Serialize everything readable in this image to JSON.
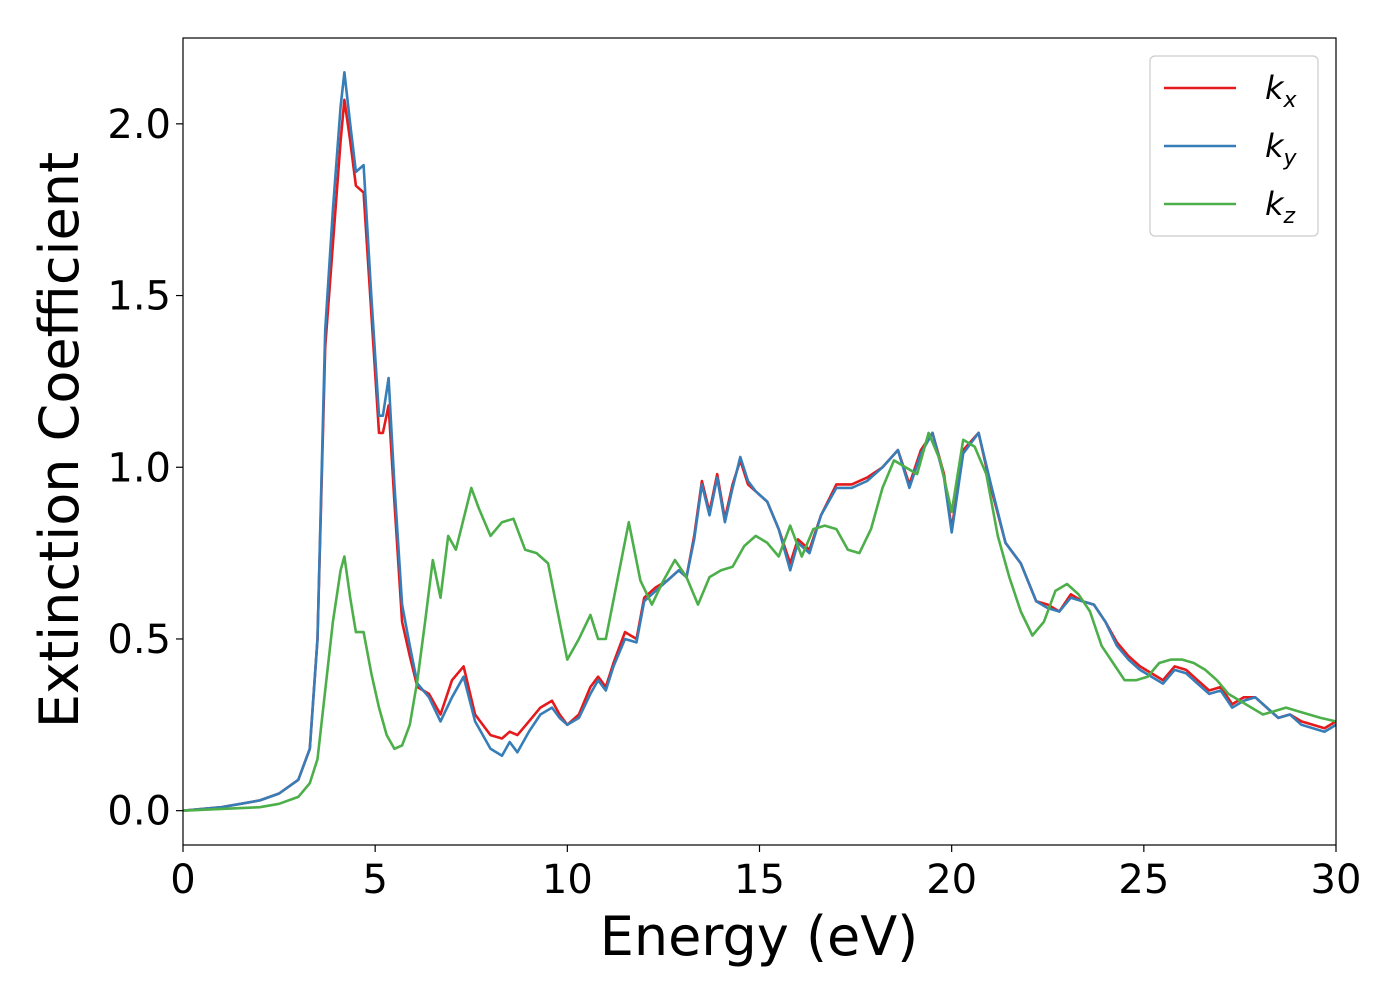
{
  "chart_data": {
    "type": "line",
    "xlabel": "Energy (eV)",
    "ylabel": "Extinction Coefficient",
    "xlim": [
      0,
      30
    ],
    "ylim": [
      -0.1,
      2.25
    ],
    "xticks": [
      0,
      5,
      10,
      15,
      20,
      25,
      30
    ],
    "xtick_labels": [
      "0",
      "5",
      "10",
      "15",
      "20",
      "25",
      "30"
    ],
    "yticks": [
      0.0,
      0.5,
      1.0,
      1.5,
      2.0
    ],
    "ytick_labels": [
      "0.0",
      "0.5",
      "1.0",
      "1.5",
      "2.0"
    ],
    "grid": false,
    "legend_position": "top-right",
    "series": [
      {
        "name": "k_x",
        "label_main": "k",
        "label_sub": "x",
        "color": "#e41a1c",
        "x": [
          0,
          1,
          2,
          2.5,
          3,
          3.3,
          3.5,
          3.7,
          3.9,
          4.1,
          4.2,
          4.35,
          4.5,
          4.7,
          4.9,
          5.1,
          5.2,
          5.35,
          5.5,
          5.7,
          5.9,
          6.1,
          6.4,
          6.7,
          7,
          7.3,
          7.6,
          8,
          8.3,
          8.5,
          8.7,
          9,
          9.3,
          9.6,
          9.8,
          10,
          10.3,
          10.6,
          10.8,
          11,
          11.2,
          11.5,
          11.8,
          12,
          12.3,
          12.6,
          12.9,
          13.1,
          13.3,
          13.5,
          13.7,
          13.9,
          14.1,
          14.3,
          14.5,
          14.7,
          14.9,
          15.2,
          15.5,
          15.8,
          16,
          16.3,
          16.6,
          17,
          17.4,
          17.8,
          18.2,
          18.6,
          18.9,
          19.2,
          19.5,
          19.8,
          20,
          20.3,
          20.7,
          21,
          21.4,
          21.8,
          22.2,
          22.5,
          22.8,
          23.1,
          23.4,
          23.7,
          24,
          24.3,
          24.6,
          24.9,
          25.2,
          25.5,
          25.8,
          26.1,
          26.4,
          26.7,
          27,
          27.3,
          27.6,
          27.9,
          28.2,
          28.5,
          28.8,
          29.1,
          29.4,
          29.7,
          30
        ],
        "values": [
          0.0,
          0.01,
          0.03,
          0.05,
          0.09,
          0.18,
          0.5,
          1.35,
          1.65,
          1.95,
          2.07,
          1.95,
          1.82,
          1.8,
          1.45,
          1.1,
          1.1,
          1.18,
          0.9,
          0.55,
          0.45,
          0.36,
          0.34,
          0.28,
          0.38,
          0.42,
          0.28,
          0.22,
          0.21,
          0.23,
          0.22,
          0.26,
          0.3,
          0.32,
          0.28,
          0.25,
          0.28,
          0.36,
          0.39,
          0.36,
          0.43,
          0.52,
          0.5,
          0.62,
          0.65,
          0.67,
          0.7,
          0.68,
          0.8,
          0.96,
          0.87,
          0.98,
          0.85,
          0.95,
          1.02,
          0.95,
          0.93,
          0.9,
          0.82,
          0.72,
          0.79,
          0.76,
          0.86,
          0.95,
          0.95,
          0.97,
          1.0,
          1.05,
          0.95,
          1.05,
          1.1,
          0.98,
          0.82,
          1.05,
          1.1,
          0.95,
          0.78,
          0.72,
          0.61,
          0.6,
          0.58,
          0.63,
          0.61,
          0.6,
          0.55,
          0.49,
          0.45,
          0.42,
          0.4,
          0.38,
          0.42,
          0.41,
          0.38,
          0.35,
          0.36,
          0.31,
          0.33,
          0.33,
          0.3,
          0.27,
          0.28,
          0.26,
          0.25,
          0.24,
          0.26
        ]
      },
      {
        "name": "k_y",
        "label_main": "k",
        "label_sub": "y",
        "color": "#377eb8",
        "x": [
          0,
          1,
          2,
          2.5,
          3,
          3.3,
          3.5,
          3.7,
          3.9,
          4.1,
          4.2,
          4.35,
          4.5,
          4.7,
          4.9,
          5.1,
          5.2,
          5.35,
          5.5,
          5.7,
          5.9,
          6.1,
          6.4,
          6.7,
          7,
          7.3,
          7.6,
          8,
          8.3,
          8.5,
          8.7,
          9,
          9.3,
          9.6,
          9.8,
          10,
          10.3,
          10.6,
          10.8,
          11,
          11.2,
          11.5,
          11.8,
          12,
          12.3,
          12.6,
          12.9,
          13.1,
          13.3,
          13.5,
          13.7,
          13.9,
          14.1,
          14.3,
          14.5,
          14.7,
          14.9,
          15.2,
          15.5,
          15.8,
          16,
          16.3,
          16.6,
          17,
          17.4,
          17.8,
          18.2,
          18.6,
          18.9,
          19.2,
          19.5,
          19.8,
          20,
          20.3,
          20.7,
          21,
          21.4,
          21.8,
          22.2,
          22.5,
          22.8,
          23.1,
          23.4,
          23.7,
          24,
          24.3,
          24.6,
          24.9,
          25.2,
          25.5,
          25.8,
          26.1,
          26.4,
          26.7,
          27,
          27.3,
          27.6,
          27.9,
          28.2,
          28.5,
          28.8,
          29.1,
          29.4,
          29.7,
          30
        ],
        "values": [
          0.0,
          0.01,
          0.03,
          0.05,
          0.09,
          0.18,
          0.5,
          1.4,
          1.75,
          2.05,
          2.15,
          2.0,
          1.86,
          1.88,
          1.5,
          1.15,
          1.15,
          1.26,
          0.95,
          0.6,
          0.48,
          0.37,
          0.33,
          0.26,
          0.33,
          0.39,
          0.26,
          0.18,
          0.16,
          0.2,
          0.17,
          0.23,
          0.28,
          0.3,
          0.27,
          0.25,
          0.27,
          0.34,
          0.38,
          0.35,
          0.42,
          0.5,
          0.49,
          0.61,
          0.64,
          0.67,
          0.7,
          0.68,
          0.79,
          0.95,
          0.86,
          0.97,
          0.84,
          0.94,
          1.03,
          0.96,
          0.93,
          0.9,
          0.82,
          0.7,
          0.78,
          0.75,
          0.86,
          0.94,
          0.94,
          0.96,
          1.0,
          1.05,
          0.94,
          1.04,
          1.1,
          0.97,
          0.81,
          1.04,
          1.1,
          0.96,
          0.78,
          0.72,
          0.61,
          0.59,
          0.58,
          0.62,
          0.61,
          0.6,
          0.55,
          0.48,
          0.44,
          0.41,
          0.39,
          0.37,
          0.41,
          0.4,
          0.37,
          0.34,
          0.35,
          0.3,
          0.32,
          0.33,
          0.3,
          0.27,
          0.28,
          0.25,
          0.24,
          0.23,
          0.25
        ]
      },
      {
        "name": "k_z",
        "label_main": "k",
        "label_sub": "z",
        "color": "#4daf4a",
        "x": [
          0,
          1,
          2,
          2.5,
          3,
          3.3,
          3.5,
          3.7,
          3.9,
          4.1,
          4.2,
          4.35,
          4.5,
          4.7,
          4.9,
          5.1,
          5.3,
          5.5,
          5.7,
          5.9,
          6.1,
          6.3,
          6.5,
          6.7,
          6.9,
          7.1,
          7.3,
          7.5,
          7.7,
          8,
          8.3,
          8.6,
          8.9,
          9.2,
          9.5,
          9.8,
          10,
          10.3,
          10.6,
          10.8,
          11,
          11.3,
          11.6,
          11.9,
          12.2,
          12.5,
          12.8,
          13.1,
          13.4,
          13.7,
          14,
          14.3,
          14.6,
          14.9,
          15.2,
          15.5,
          15.8,
          16.1,
          16.4,
          16.7,
          17,
          17.3,
          17.6,
          17.9,
          18.2,
          18.5,
          18.8,
          19.1,
          19.4,
          19.7,
          20,
          20.3,
          20.6,
          20.9,
          21.2,
          21.5,
          21.8,
          22.1,
          22.4,
          22.7,
          23,
          23.3,
          23.6,
          23.9,
          24.2,
          24.5,
          24.8,
          25.1,
          25.4,
          25.7,
          26,
          26.3,
          26.6,
          26.9,
          27.2,
          27.5,
          27.8,
          28.1,
          28.4,
          28.7,
          29,
          29.3,
          29.6,
          30
        ],
        "values": [
          0.0,
          0.005,
          0.01,
          0.02,
          0.04,
          0.08,
          0.15,
          0.35,
          0.55,
          0.7,
          0.74,
          0.62,
          0.52,
          0.52,
          0.4,
          0.3,
          0.22,
          0.18,
          0.19,
          0.25,
          0.38,
          0.55,
          0.73,
          0.62,
          0.8,
          0.76,
          0.85,
          0.94,
          0.88,
          0.8,
          0.84,
          0.85,
          0.76,
          0.75,
          0.72,
          0.55,
          0.44,
          0.5,
          0.57,
          0.5,
          0.5,
          0.67,
          0.84,
          0.67,
          0.6,
          0.67,
          0.73,
          0.68,
          0.6,
          0.68,
          0.7,
          0.71,
          0.77,
          0.8,
          0.78,
          0.74,
          0.83,
          0.74,
          0.82,
          0.83,
          0.82,
          0.76,
          0.75,
          0.82,
          0.94,
          1.02,
          1.0,
          0.98,
          1.1,
          1.02,
          0.87,
          1.08,
          1.06,
          0.98,
          0.8,
          0.68,
          0.58,
          0.51,
          0.55,
          0.64,
          0.66,
          0.63,
          0.58,
          0.48,
          0.43,
          0.38,
          0.38,
          0.39,
          0.43,
          0.44,
          0.44,
          0.43,
          0.41,
          0.38,
          0.34,
          0.32,
          0.3,
          0.28,
          0.29,
          0.3,
          0.29,
          0.28,
          0.27,
          0.26
        ]
      }
    ]
  }
}
